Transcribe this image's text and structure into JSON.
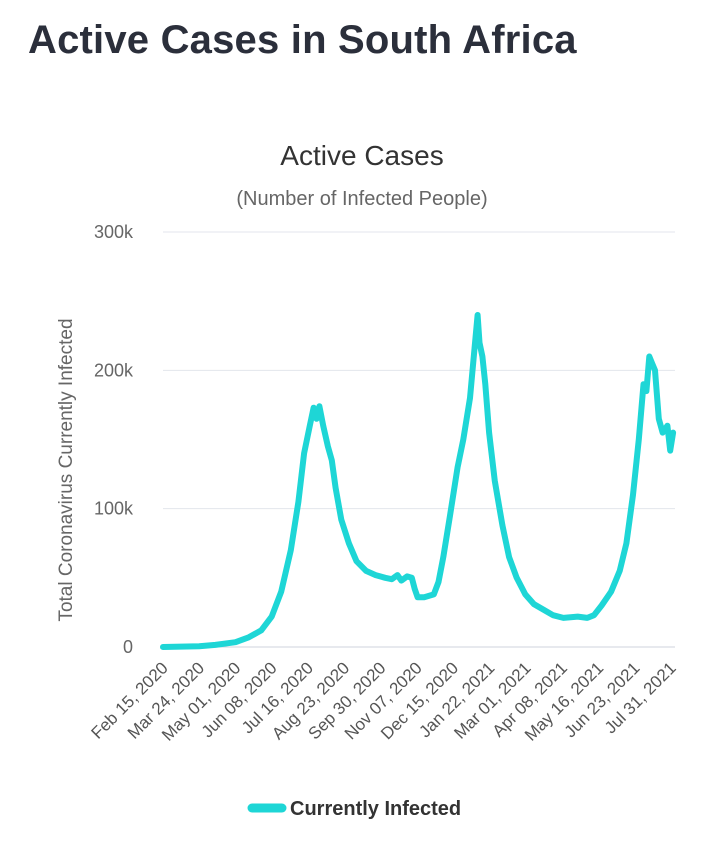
{
  "page": {
    "heading": "Active Cases in South Africa"
  },
  "chart_data": {
    "type": "line",
    "title": "Active Cases",
    "subtitle": "(Number of Infected People)",
    "ylabel": "Total Coronavirus Currently Infected",
    "xlabel": "",
    "ylim": [
      0,
      300000
    ],
    "yticks": [
      0,
      100000,
      200000,
      300000
    ],
    "ytick_labels": [
      "0",
      "100k",
      "200k",
      "300k"
    ],
    "grid": true,
    "legend": "bottom-center",
    "series_color": "#1ed6d6",
    "x_tick_labels": [
      "Feb 15, 2020",
      "Mar 24, 2020",
      "May 01, 2020",
      "Jun 08, 2020",
      "Jul 16, 2020",
      "Aug 23, 2020",
      "Sep 30, 2020",
      "Nov 07, 2020",
      "Dec 15, 2020",
      "Jan 22, 2021",
      "Mar 01, 2021",
      "Apr 08, 2021",
      "May 16, 2021",
      "Jun 23, 2021",
      "Jul 31, 2021"
    ],
    "x_range": [
      "2020-02-15",
      "2021-08-05"
    ],
    "series": [
      {
        "name": "Currently Infected",
        "points": [
          [
            "2020-02-15",
            0
          ],
          [
            "2020-03-24",
            600
          ],
          [
            "2020-04-10",
            1500
          ],
          [
            "2020-05-01",
            3500
          ],
          [
            "2020-05-15",
            7000
          ],
          [
            "2020-05-28",
            12000
          ],
          [
            "2020-06-08",
            22000
          ],
          [
            "2020-06-18",
            40000
          ],
          [
            "2020-06-28",
            70000
          ],
          [
            "2020-07-06",
            105000
          ],
          [
            "2020-07-12",
            140000
          ],
          [
            "2020-07-18",
            160000
          ],
          [
            "2020-07-22",
            173000
          ],
          [
            "2020-07-25",
            165000
          ],
          [
            "2020-07-28",
            174000
          ],
          [
            "2020-08-01",
            160000
          ],
          [
            "2020-08-06",
            145000
          ],
          [
            "2020-08-10",
            135000
          ],
          [
            "2020-08-14",
            115000
          ],
          [
            "2020-08-20",
            92000
          ],
          [
            "2020-08-28",
            75000
          ],
          [
            "2020-09-05",
            62000
          ],
          [
            "2020-09-15",
            55000
          ],
          [
            "2020-09-25",
            52000
          ],
          [
            "2020-10-05",
            50000
          ],
          [
            "2020-10-12",
            49000
          ],
          [
            "2020-10-18",
            52000
          ],
          [
            "2020-10-22",
            48000
          ],
          [
            "2020-10-28",
            51000
          ],
          [
            "2020-11-02",
            50000
          ],
          [
            "2020-11-05",
            42000
          ],
          [
            "2020-11-08",
            36000
          ],
          [
            "2020-11-15",
            36000
          ],
          [
            "2020-11-25",
            38000
          ],
          [
            "2020-11-30",
            47000
          ],
          [
            "2020-12-05",
            65000
          ],
          [
            "2020-12-12",
            95000
          ],
          [
            "2020-12-20",
            130000
          ],
          [
            "2020-12-26",
            150000
          ],
          [
            "2021-01-02",
            180000
          ],
          [
            "2021-01-07",
            218000
          ],
          [
            "2021-01-10",
            240000
          ],
          [
            "2021-01-12",
            220000
          ],
          [
            "2021-01-15",
            210000
          ],
          [
            "2021-01-18",
            190000
          ],
          [
            "2021-01-22",
            155000
          ],
          [
            "2021-01-28",
            120000
          ],
          [
            "2021-02-05",
            88000
          ],
          [
            "2021-02-12",
            65000
          ],
          [
            "2021-02-20",
            50000
          ],
          [
            "2021-03-01",
            38000
          ],
          [
            "2021-03-10",
            31000
          ],
          [
            "2021-03-20",
            27000
          ],
          [
            "2021-03-30",
            23000
          ],
          [
            "2021-04-10",
            21000
          ],
          [
            "2021-04-25",
            22000
          ],
          [
            "2021-05-05",
            21000
          ],
          [
            "2021-05-12",
            23000
          ],
          [
            "2021-05-20",
            30000
          ],
          [
            "2021-05-30",
            40000
          ],
          [
            "2021-06-08",
            55000
          ],
          [
            "2021-06-15",
            75000
          ],
          [
            "2021-06-22",
            110000
          ],
          [
            "2021-06-28",
            150000
          ],
          [
            "2021-07-03",
            190000
          ],
          [
            "2021-07-06",
            185000
          ],
          [
            "2021-07-09",
            210000
          ],
          [
            "2021-07-12",
            205000
          ],
          [
            "2021-07-15",
            200000
          ],
          [
            "2021-07-19",
            165000
          ],
          [
            "2021-07-23",
            155000
          ],
          [
            "2021-07-28",
            160000
          ],
          [
            "2021-07-31",
            142000
          ],
          [
            "2021-08-03",
            155000
          ]
        ]
      }
    ]
  }
}
